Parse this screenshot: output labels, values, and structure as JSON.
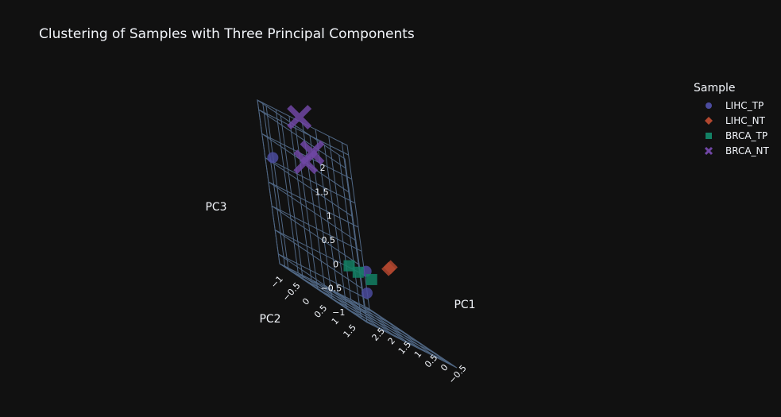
{
  "chart_data": {
    "type": "scatter3d",
    "title": "Clustering of Samples with Three Principal Components",
    "axes": {
      "x": {
        "label": "PC1",
        "ticks": [
          "−0.5",
          "0",
          "0.5",
          "1",
          "1.5",
          "2",
          "2.5"
        ]
      },
      "y": {
        "label": "PC2",
        "ticks": [
          "−1",
          "−0.5",
          "0",
          "0.5",
          "1",
          "1.5"
        ]
      },
      "z": {
        "label": "PC3",
        "ticks": [
          "−1",
          "−0.5",
          "0",
          "0.5",
          "1",
          "1.5",
          "2"
        ]
      }
    },
    "legend": {
      "title": "Sample",
      "position": "top-right"
    },
    "series": [
      {
        "name": "LIHC_TP",
        "symbol": "circle",
        "color": "#4b4b9e",
        "points": [
          {
            "x": 2.5,
            "y": -1.2,
            "z": 1.1
          },
          {
            "x": 2.0,
            "y": 1.2,
            "z": -0.6
          },
          {
            "x": 0.2,
            "y": -0.4,
            "z": -0.3
          }
        ]
      },
      {
        "name": "LIHC_NT",
        "symbol": "diamond",
        "color": "#b1472f",
        "points": [
          {
            "x": -0.3,
            "y": 0.0,
            "z": 0.05
          },
          {
            "x": -0.5,
            "y": -0.1,
            "z": 0.1
          }
        ]
      },
      {
        "name": "BRCA_TP",
        "symbol": "square",
        "color": "#138064",
        "points": [
          {
            "x": 1.6,
            "y": 0.6,
            "z": -0.3
          },
          {
            "x": 1.5,
            "y": 0.2,
            "z": -0.3
          },
          {
            "x": 1.2,
            "y": 0.7,
            "z": -0.3
          }
        ]
      },
      {
        "name": "BRCA_NT",
        "symbol": "x",
        "color": "#7046a5",
        "points": [
          {
            "x": 1.3,
            "y": -0.8,
            "z": 1.7
          },
          {
            "x": 1.4,
            "y": -1.0,
            "z": 1.4
          },
          {
            "x": 1.2,
            "y": -1.2,
            "z": 2.3
          }
        ]
      }
    ]
  }
}
